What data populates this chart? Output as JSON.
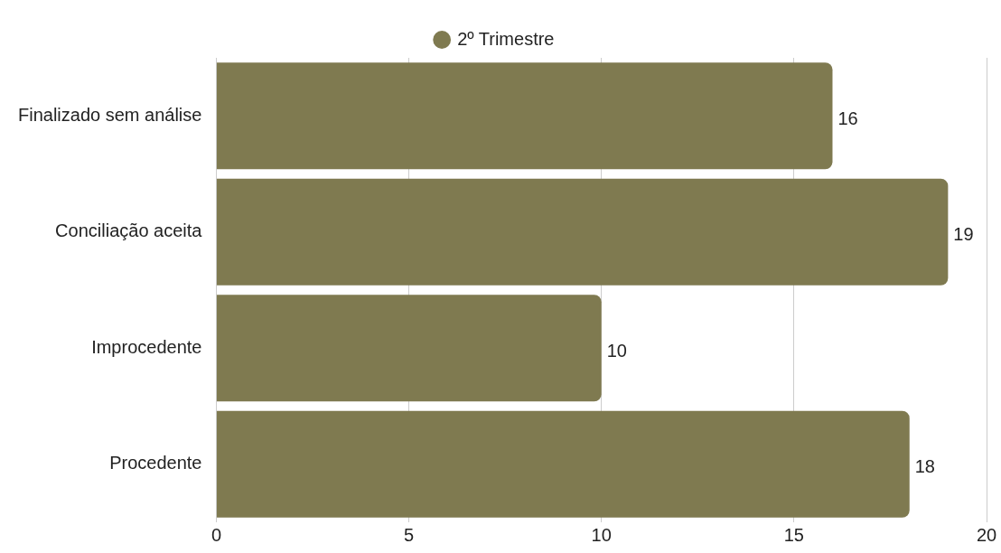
{
  "chart_data": {
    "type": "bar",
    "orientation": "horizontal",
    "categories": [
      "Finalizado sem análise",
      "Conciliação aceita",
      "Improcedente",
      "Procedente"
    ],
    "series": [
      {
        "name": "2º Trimestre",
        "color": "#7f7a50",
        "values": [
          16,
          19,
          10,
          18
        ]
      }
    ],
    "xlim": [
      0,
      20
    ],
    "xticks": [
      0,
      5,
      10,
      15,
      20
    ],
    "grid": "x",
    "legend": "top",
    "data_labels": true
  }
}
